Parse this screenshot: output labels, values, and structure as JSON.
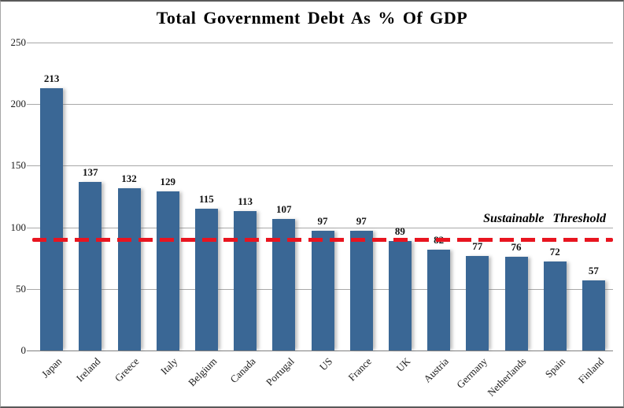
{
  "title": "Total Government Debt As % Of GDP",
  "chart_data": {
    "type": "bar",
    "title": "Total Government Debt As % Of GDP",
    "categories": [
      "Japan",
      "Ireland",
      "Greece",
      "Italy",
      "Belgium",
      "Canada",
      "Portugal",
      "US",
      "France",
      "UK",
      "Austria",
      "Germany",
      "Netherlands",
      "Spain",
      "Finland"
    ],
    "values": [
      213,
      137,
      132,
      129,
      115,
      113,
      107,
      97,
      97,
      89,
      82,
      77,
      76,
      72,
      57
    ],
    "xlabel": "",
    "ylabel": "",
    "ylim": [
      0,
      250
    ],
    "yticks": [
      0,
      50,
      100,
      150,
      200,
      250
    ],
    "grid": true,
    "legend": "none",
    "threshold": {
      "value": 90,
      "label": "Sustainable Threshold",
      "color": "#e81520"
    },
    "colors": {
      "bar": "#3a6795",
      "gridline": "#a8a8a8",
      "baseline": "#7f7f7f",
      "text": "#1a1a1a"
    }
  }
}
